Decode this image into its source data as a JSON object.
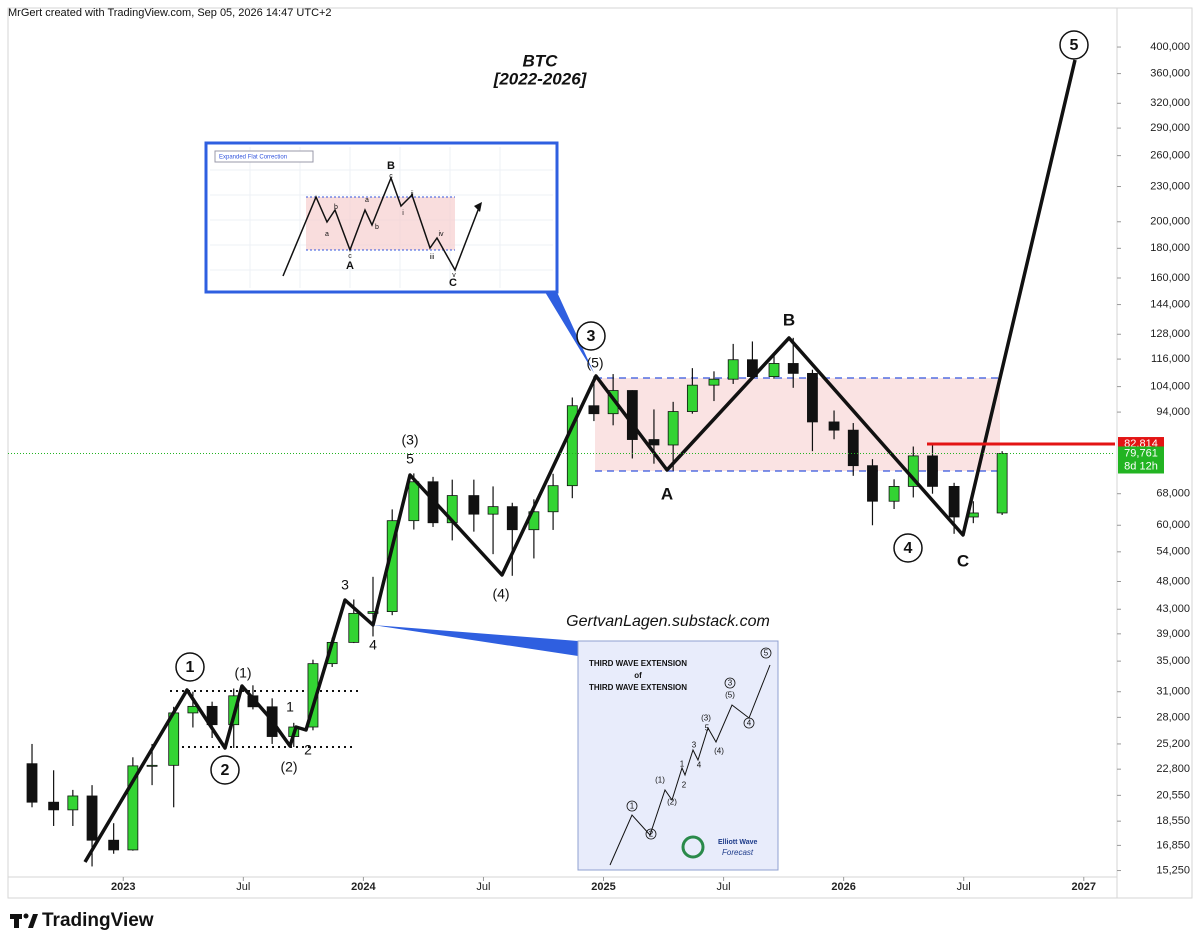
{
  "header": "MrGert created with TradingView.com, Sep 05, 2026 14:47 UTC+2",
  "brand": "TradingView",
  "chart_data": {
    "type": "candlestick",
    "title": "BTC",
    "subtitle": "[2022-2026]",
    "log_scale": true,
    "grid": false,
    "up_color": "#33d433",
    "down_color": "#111111",
    "xlim": [
      2022.52,
      2027.13
    ],
    "xticks": [
      2023,
      {
        "value": 2023.5,
        "label": "Jul"
      },
      2024,
      {
        "value": 2024.5,
        "label": "Jul"
      },
      2025,
      {
        "value": 2025.5,
        "label": "Jul"
      },
      2026,
      {
        "value": 2026.5,
        "label": "Jul"
      },
      2027
    ],
    "ylim": [
      14400,
      467000
    ],
    "yticks": [
      {
        "value": 15250,
        "label": "15,250"
      },
      {
        "value": 16850,
        "label": "16,850"
      },
      {
        "value": 18550,
        "label": "18,550"
      },
      {
        "value": 20550,
        "label": "20,550"
      },
      {
        "value": 22800,
        "label": "22,800"
      },
      {
        "value": 25200,
        "label": "25,200"
      },
      {
        "value": 28000,
        "label": "28,000"
      },
      {
        "value": 31000,
        "label": "31,000"
      },
      {
        "value": 35000,
        "label": "35,000"
      },
      {
        "value": 39000,
        "label": "39,000"
      },
      {
        "value": 43000,
        "label": "43,000"
      },
      {
        "value": 48000,
        "label": "48,000"
      },
      {
        "value": 54000,
        "label": "54,000"
      },
      {
        "value": 60000,
        "label": "60,000"
      },
      {
        "value": 68000,
        "label": "68,000"
      },
      {
        "value": 94000,
        "label": "94,000"
      },
      {
        "value": 104000,
        "label": "104,000"
      },
      {
        "value": 116000,
        "label": "116,000"
      },
      {
        "value": 128000,
        "label": "128,000"
      },
      {
        "value": 144000,
        "label": "144,000"
      },
      {
        "value": 160000,
        "label": "160,000"
      },
      {
        "value": 180000,
        "label": "180,000"
      },
      {
        "value": 200000,
        "label": "200,000"
      },
      {
        "value": 230000,
        "label": "230,000"
      },
      {
        "value": 260000,
        "label": "260,000"
      },
      {
        "value": 290000,
        "label": "290,000"
      },
      {
        "value": 320000,
        "label": "320,000"
      },
      {
        "value": 360000,
        "label": "360,000"
      },
      {
        "value": 400000,
        "label": "400,000"
      }
    ],
    "x": [
      2022.62,
      2022.71,
      2022.79,
      2022.87,
      2022.96,
      2023.04,
      2023.12,
      2023.21,
      2023.29,
      2023.37,
      2023.46,
      2023.54,
      2023.62,
      2023.71,
      2023.79,
      2023.87,
      2023.96,
      2024.04,
      2024.12,
      2024.21,
      2024.29,
      2024.37,
      2024.46,
      2024.54,
      2024.62,
      2024.71,
      2024.79,
      2024.87,
      2024.96,
      2025.04,
      2025.12,
      2025.21,
      2025.29,
      2025.37,
      2025.46,
      2025.54,
      2025.62,
      2025.71,
      2025.79,
      2025.87,
      2025.96,
      2026.04,
      2026.12,
      2026.21,
      2026.29,
      2026.37,
      2026.46,
      2026.54,
      2026.66
    ],
    "open": [
      23300,
      20000,
      19400,
      20500,
      17200,
      16550,
      23100,
      23150,
      28500,
      29250,
      27200,
      30500,
      29200,
      25950,
      26950,
      34650,
      37700,
      42300,
      42600,
      61100,
      71300,
      60600,
      67500,
      62700,
      64600,
      58950,
      63300,
      70200,
      96400,
      93400,
      102400,
      84300,
      82500,
      94200,
      104600,
      107100,
      115700,
      108200,
      114000,
      109600,
      90400,
      87500,
      76000,
      66000,
      70000,
      79000,
      70000,
      62000,
      63000
    ],
    "high": [
      25200,
      22700,
      21000,
      21400,
      18400,
      23900,
      25200,
      29200,
      31000,
      29800,
      31400,
      31800,
      30200,
      27400,
      35200,
      38400,
      44700,
      48900,
      63900,
      73700,
      72700,
      71900,
      71900,
      70000,
      65600,
      66500,
      73600,
      99600,
      108300,
      109300,
      102500,
      95000,
      97900,
      111900,
      110500,
      123200,
      124400,
      117900,
      126200,
      111200,
      94600,
      90000,
      78000,
      72000,
      82000,
      83000,
      71000,
      66000,
      80500
    ],
    "low": [
      19600,
      18200,
      18200,
      15500,
      16300,
      16500,
      21400,
      19600,
      26900,
      25800,
      24800,
      28900,
      25200,
      24900,
      26600,
      34200,
      37600,
      38600,
      42000,
      59000,
      59600,
      56500,
      58500,
      53500,
      49100,
      52600,
      58900,
      66800,
      90700,
      89200,
      78200,
      76600,
      74500,
      93400,
      98200,
      105100,
      107300,
      107300,
      103500,
      80500,
      84400,
      73000,
      60000,
      64000,
      67000,
      68000,
      58000,
      60500,
      62500
    ],
    "close": [
      20000,
      19400,
      20500,
      17200,
      16550,
      23100,
      23150,
      28500,
      29250,
      27200,
      30500,
      29200,
      25950,
      26950,
      34650,
      37700,
      42300,
      42600,
      61100,
      71300,
      60600,
      67500,
      62700,
      64600,
      58950,
      63300,
      70200,
      96400,
      93400,
      102400,
      84300,
      82500,
      94200,
      104600,
      107100,
      115700,
      108200,
      114000,
      109600,
      90400,
      87500,
      76000,
      66000,
      70000,
      79000,
      70000,
      62000,
      63000,
      79761
    ],
    "price_line": {
      "value": 82814,
      "label": "82,814",
      "color": "#e31414"
    },
    "last_price": {
      "value": 79761,
      "label": "79,761",
      "color": "#22b422"
    },
    "countdown": "8d 12h",
    "waves": [
      "1",
      "2",
      "(1)",
      "(2)",
      "1",
      "2",
      "3",
      "4",
      "(3)",
      "5",
      "(4)",
      "3",
      "(5)",
      "A",
      "B",
      "4",
      "C",
      "5"
    ],
    "watermark": "GertvanLagen.substack.com"
  },
  "insets": {
    "flat": {
      "title": "Expanded Flat Correction",
      "labels": [
        "B",
        "c",
        "b",
        "a",
        "a",
        "b",
        "ii",
        "i",
        "iv",
        "iii",
        "v",
        "c",
        "A",
        "C"
      ]
    },
    "extension": {
      "title": [
        "THIRD WAVE EXTENSION",
        "of",
        "THIRD WAVE EXTENSION"
      ],
      "labels": [
        "1",
        "2",
        "(1)",
        "(2)",
        "1",
        "2",
        "3",
        "4",
        "5",
        "(3)",
        "(4)",
        "3",
        "(5)",
        "4",
        "5"
      ],
      "logo": [
        "Elliott Wave",
        "Forecast"
      ]
    }
  }
}
